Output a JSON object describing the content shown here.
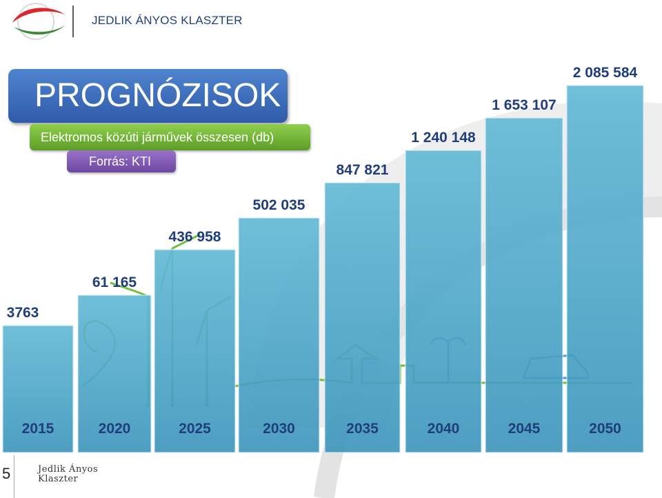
{
  "header": {
    "organization": "JEDLIK ÁNYOS KLASZTER"
  },
  "slide": {
    "title": "PROGNÓZISOK",
    "subtitle": "Elektromos közúti járművek összesen (db)",
    "source": "Forrás: KTI",
    "page_number": "5",
    "footer_logo_line1": "Jedlik Ányos",
    "footer_logo_line2": "Klaszter"
  },
  "colors": {
    "bar_fill": "#5bb3cf",
    "bar_label": "#1f3e7a",
    "title_blue": "#2f5ba8",
    "subtitle_green": "#6aa93a",
    "source_purple": "#7a52b0",
    "logo_red": "#d9272e",
    "logo_green": "#3a8a3a"
  },
  "chart_data": {
    "type": "bar",
    "categories": [
      "2015",
      "2020",
      "2025",
      "2030",
      "2035",
      "2040",
      "2045",
      "2050"
    ],
    "values": [
      3763,
      61165,
      436958,
      502035,
      847821,
      1240148,
      1653107,
      2085584
    ],
    "value_labels": [
      "3763",
      "61 165",
      "436 958",
      "502 035",
      "847 821",
      "1 240 148",
      "1 653 107",
      "2 085 584"
    ],
    "title": "Elektromos közúti járművek összesen (db)",
    "xlabel": "",
    "ylabel": "",
    "grid": false,
    "legend": "none"
  }
}
